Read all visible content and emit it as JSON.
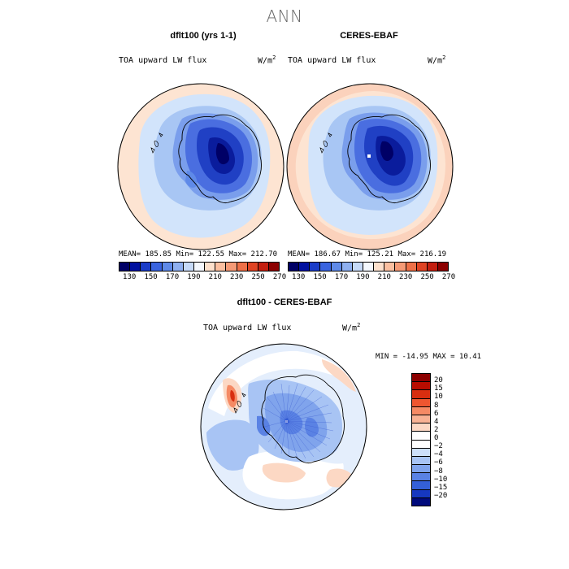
{
  "figure": {
    "title": "ANN"
  },
  "panels": {
    "model": {
      "title": "dflt100 (yrs 1-1)",
      "variable": "TOA upward LW flux",
      "units_base": "W/m",
      "units_exp": "2",
      "stats": "MEAN= 185.85   Min= 122.55   Max= 212.70"
    },
    "obs": {
      "title": "CERES-EBAF",
      "variable": "TOA upward LW flux",
      "units_base": "W/m",
      "units_exp": "2",
      "stats": "MEAN= 186.67   Min= 125.21   Max= 216.19"
    },
    "diff": {
      "title": "dflt100 - CERES-EBAF",
      "variable": "TOA upward LW flux",
      "units_base": "W/m",
      "units_exp": "2",
      "stats": "MIN = -14.95 MAX =  10.41"
    }
  },
  "colorbar_main": {
    "colors": [
      "#000066",
      "#0010a0",
      "#1a3cc8",
      "#3a64e0",
      "#5f8ae8",
      "#8fb0f0",
      "#c6daf8",
      "#f4f8fe",
      "#fde0cc",
      "#fbbfa0",
      "#f59a76",
      "#ee7048",
      "#e04424",
      "#c41f10",
      "#8c0000"
    ],
    "tick_labels": [
      "130",
      "150",
      "170",
      "190",
      "210",
      "230",
      "250",
      "270"
    ]
  },
  "colorbar_diff": {
    "colors": [
      "#8c0000",
      "#b80c00",
      "#d82e10",
      "#ee5630",
      "#f58a64",
      "#f8b294",
      "#fcd8c4",
      "#ffffff",
      "#ffffff",
      "#cde0fa",
      "#a8c4f4",
      "#80a4ec",
      "#5a82e4",
      "#3460d8",
      "#1638c0",
      "#000a7c"
    ],
    "tick_labels": [
      "20",
      "15",
      "10",
      "8",
      "6",
      "4",
      "2",
      "0",
      "−2",
      "−4",
      "−6",
      "−8",
      "−10",
      "−15",
      "−20"
    ]
  },
  "map_data": {
    "projection": "south-polar-stereographic",
    "region": "Antarctica / Southern Ocean"
  }
}
